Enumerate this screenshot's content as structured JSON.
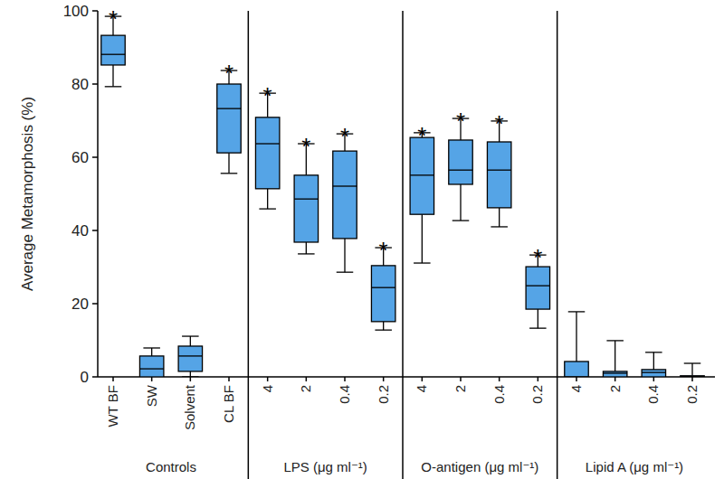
{
  "chart_data": {
    "type": "box",
    "y_label": "Average Metamorphosis (%)",
    "categories": [
      "WT BF",
      "SW",
      "Solvent",
      "CL BF",
      "4",
      "2",
      "0.4",
      "0.2",
      "4",
      "2",
      "0.4",
      "0.2",
      "4",
      "2",
      "0.4",
      "0.2"
    ],
    "groups": [
      {
        "name": "Controls",
        "size": 4
      },
      {
        "name": "LPS (μg ml⁻¹)",
        "size": 4
      },
      {
        "name": "O-antigen (μg ml⁻¹)",
        "size": 4
      },
      {
        "name": "Lipid A (μg ml⁻¹)",
        "size": 4
      }
    ],
    "boxes": [
      {
        "min": 79.3,
        "q1": 85.2,
        "median": 88.1,
        "q3": 93.3,
        "max": 98.5
      },
      {
        "min": 0,
        "q1": 0,
        "median": 2.2,
        "q3": 5.7,
        "max": 7.9
      },
      {
        "min": 0,
        "q1": 1.5,
        "median": 5.7,
        "q3": 8.4,
        "max": 11.1
      },
      {
        "min": 55.6,
        "q1": 61.2,
        "median": 73.3,
        "q3": 80,
        "max": 83.7
      },
      {
        "min": 45.9,
        "q1": 51.4,
        "median": 63.7,
        "q3": 70.9,
        "max": 77.5
      },
      {
        "min": 33.6,
        "q1": 36.8,
        "median": 48.6,
        "q3": 55.1,
        "max": 63.7
      },
      {
        "min": 28.6,
        "q1": 37.8,
        "median": 52.1,
        "q3": 61.7,
        "max": 66.4
      },
      {
        "min": 12.8,
        "q1": 15.1,
        "median": 24.4,
        "q3": 30.4,
        "max": 35.3
      },
      {
        "min": 31.1,
        "q1": 44.4,
        "median": 55.1,
        "q3": 65.4,
        "max": 66.7
      },
      {
        "min": 42.7,
        "q1": 52.6,
        "median": 56.5,
        "q3": 64.7,
        "max": 70.6
      },
      {
        "min": 41,
        "q1": 46.2,
        "median": 56.5,
        "q3": 64.2,
        "max": 69.9
      },
      {
        "min": 13.3,
        "q1": 18.5,
        "median": 24.9,
        "q3": 30.1,
        "max": 33.3
      },
      {
        "min": 0,
        "q1": 0,
        "median": 0,
        "q3": 4.2,
        "max": 17.8
      },
      {
        "min": 0,
        "q1": 0,
        "median": 1,
        "q3": 1.5,
        "max": 9.9
      },
      {
        "min": 0,
        "q1": 0,
        "median": 1.2,
        "q3": 2,
        "max": 6.7
      },
      {
        "min": 0,
        "q1": 0,
        "median": 0,
        "q3": 0.3,
        "max": 3.7
      }
    ],
    "significance": [
      "*",
      null,
      null,
      "*",
      "*",
      "*",
      "*",
      "*",
      "*",
      "*",
      "*",
      "*",
      null,
      null,
      null,
      null
    ],
    "color": "#55a4e6",
    "ylim": [
      0,
      100
    ],
    "yticks": [
      0,
      20,
      40,
      60,
      80,
      100
    ],
    "grid": false
  }
}
